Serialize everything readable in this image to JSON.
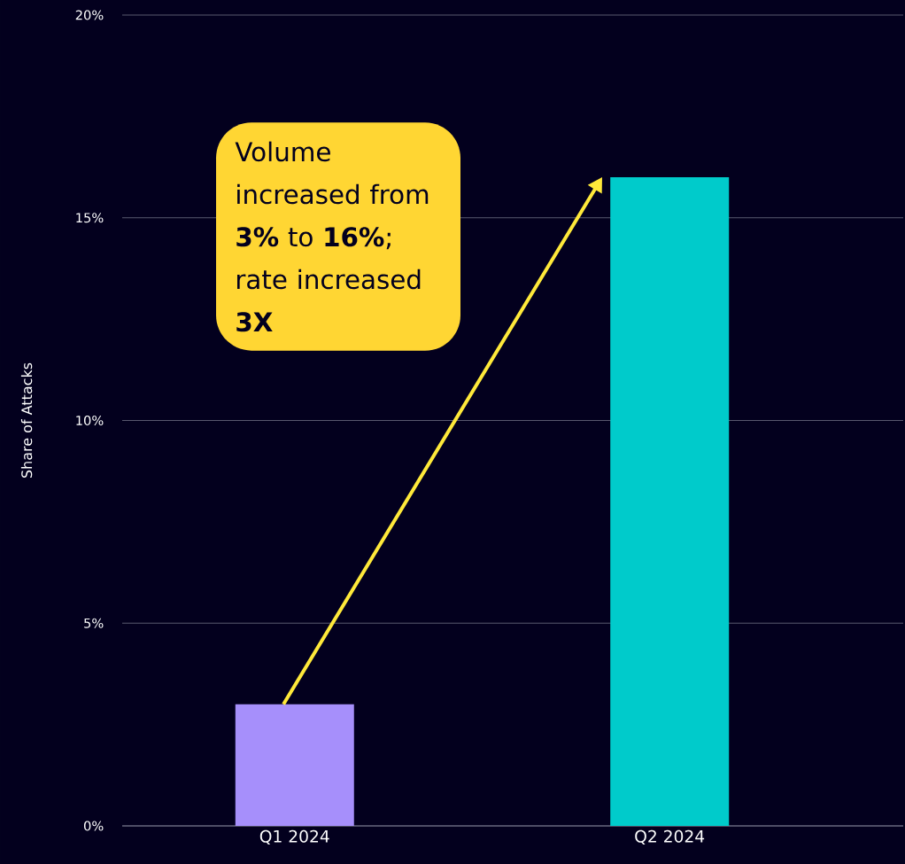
{
  "chart_data": {
    "type": "bar",
    "ylabel": "Share of Attacks",
    "categories": [
      "Q1 2024",
      "Q2 2024"
    ],
    "values": [
      3,
      16
    ],
    "colors": [
      "#a68ffb",
      "#00cbcb"
    ],
    "ylim": [
      0,
      20
    ],
    "yticks": [
      {
        "value": 0,
        "label": "0%"
      },
      {
        "value": 5,
        "label": "5%"
      },
      {
        "value": 10,
        "label": "10%"
      },
      {
        "value": 15,
        "label": "15%"
      },
      {
        "value": 20,
        "label": "20%"
      }
    ],
    "grid": "y",
    "annotations": [
      "Volume increased from **3%** to **16%**; rate increased **3X**"
    ]
  }
}
